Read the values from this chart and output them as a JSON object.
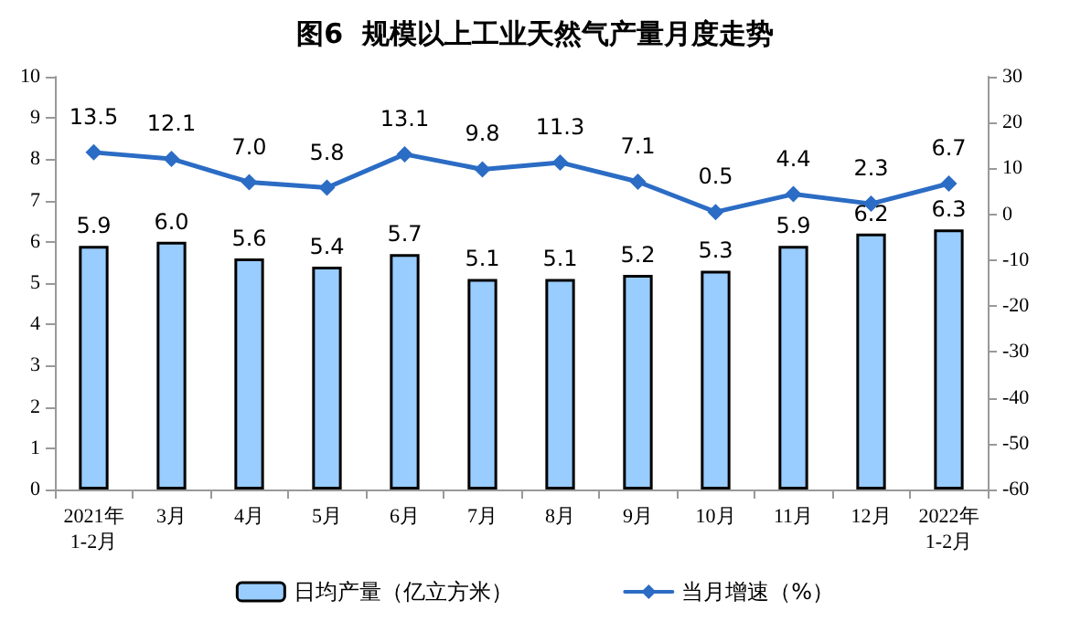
{
  "chart_data": {
    "type": "bar",
    "title": "图6  规模以上工业天然气产量月度走势",
    "categories": [
      "2021年\n1-2月",
      "3月",
      "4月",
      "5月",
      "6月",
      "7月",
      "8月",
      "9月",
      "10月",
      "11月",
      "12月",
      "2022年\n1-2月"
    ],
    "series": [
      {
        "name": "日均产量（亿立方米）",
        "color": "#99ccff",
        "values": [
          5.9,
          6.0,
          5.6,
          5.4,
          5.7,
          5.1,
          5.1,
          5.2,
          5.3,
          5.9,
          6.2,
          6.3
        ],
        "value_labels": [
          "5.9",
          "6.0",
          "5.6",
          "5.4",
          "5.7",
          "5.1",
          "5.1",
          "5.2",
          "5.3",
          "5.9",
          "6.2",
          "6.3"
        ]
      },
      {
        "name": "当月增速（%）",
        "type": "line",
        "axis": "y2",
        "color": "#2b6cc4",
        "marker": "diamond",
        "values": [
          13.5,
          12.1,
          7.0,
          5.8,
          13.1,
          9.8,
          11.3,
          7.1,
          0.5,
          4.4,
          2.3,
          6.7
        ],
        "value_labels": [
          "13.5",
          "12.1",
          "7.0",
          "5.8",
          "13.1",
          "9.8",
          "11.3",
          "7.1",
          "0.5",
          "4.4",
          "2.3",
          "6.7"
        ]
      }
    ],
    "ylim": [
      0,
      10
    ],
    "yticks": [
      0,
      1,
      2,
      3,
      4,
      5,
      6,
      7,
      8,
      9,
      10
    ],
    "y2lim": [
      -60,
      30
    ],
    "y2ticks": [
      -60,
      -50,
      -40,
      -30,
      -20,
      -10,
      0,
      10,
      20,
      30
    ],
    "legend": "bottom",
    "grid": false
  }
}
